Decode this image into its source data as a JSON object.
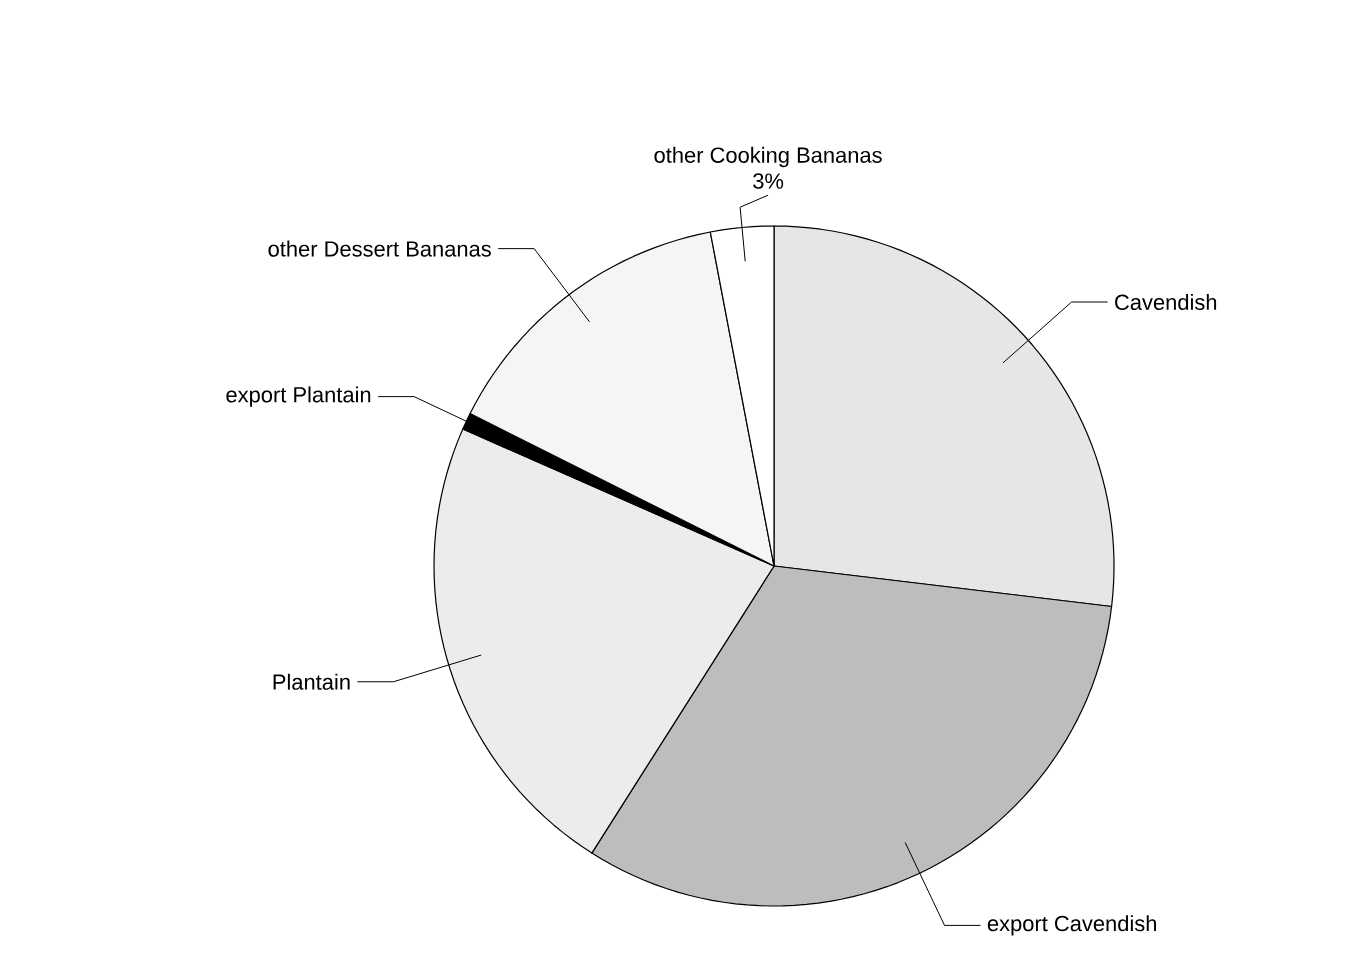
{
  "chart_data": {
    "type": "pie",
    "categories": [
      "Cavendish",
      "export Cavendish",
      "Plantain",
      "export Plantain",
      "other Dessert Bananas",
      "other Cooking Bananas"
    ],
    "values": [
      26.9,
      32.1,
      22.6,
      0.8,
      14.6,
      3
    ],
    "colors": [
      "#e6e6e6",
      "#bdbdbd",
      "#ececec",
      "#000000",
      "#f5f5f5",
      "#ffffff"
    ],
    "value_labels": [
      null,
      null,
      null,
      null,
      null,
      "3%"
    ]
  }
}
